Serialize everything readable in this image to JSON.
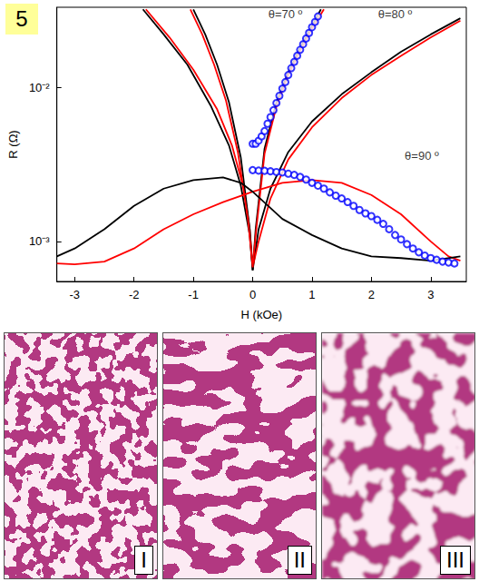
{
  "chart_data": {
    "type": "line",
    "panel": "5",
    "x_label": "H (kOe)",
    "y_label": "R (Ω)",
    "log": "y",
    "grid": false,
    "xlim": [
      -3.3,
      3.6
    ],
    "xticks": [
      -3,
      -2,
      -1,
      0,
      1,
      2,
      3
    ],
    "ylim": [
      0.00055,
      0.033
    ],
    "yticks": [
      {
        "value": 0.001,
        "label": "10⁻³"
      },
      {
        "value": 0.01,
        "label": "10⁻²"
      }
    ],
    "series": [
      {
        "color": "#000000",
        "type": "line",
        "line_style": "solid",
        "marker": "none",
        "x": [
          -1.85,
          -1.5,
          -1.1,
          -0.7,
          -0.4,
          -0.2,
          -0.05,
          0,
          0.1,
          0.3,
          0.6,
          1.0,
          1.5,
          2.0,
          2.5,
          3.0,
          3.5
        ],
        "values": [
          0.032,
          0.022,
          0.014,
          0.0075,
          0.0042,
          0.0023,
          0.0011,
          0.00065,
          0.0012,
          0.0022,
          0.0038,
          0.006,
          0.009,
          0.0125,
          0.017,
          0.022,
          0.028
        ]
      },
      {
        "color": "#ff0000",
        "type": "line",
        "line_style": "solid",
        "marker": "none",
        "x": [
          -1.8,
          -1.4,
          -1.0,
          -0.6,
          -0.35,
          -0.15,
          -0.05,
          0,
          0.1,
          0.3,
          0.6,
          1.0,
          1.5,
          2.0,
          2.5,
          3.0,
          3.5
        ],
        "values": [
          0.032,
          0.021,
          0.013,
          0.0072,
          0.0042,
          0.0022,
          0.0012,
          0.00068,
          0.001,
          0.0019,
          0.0034,
          0.0055,
          0.0085,
          0.012,
          0.016,
          0.021,
          0.027
        ]
      },
      {
        "color": "#000000",
        "type": "line",
        "line_style": "solid",
        "marker": "none",
        "x": [
          -1.0,
          -0.8,
          -0.6,
          -0.4,
          -0.2,
          -0.05,
          0,
          0.05,
          0.2,
          0.4,
          0.6,
          0.8,
          1.0,
          1.15
        ],
        "values": [
          0.032,
          0.022,
          0.014,
          0.008,
          0.0035,
          0.0012,
          0.00065,
          0.0012,
          0.004,
          0.008,
          0.0125,
          0.018,
          0.025,
          0.032
        ]
      },
      {
        "color": "#ff0000",
        "type": "line",
        "line_style": "solid",
        "marker": "none",
        "x": [
          -1.05,
          -0.85,
          -0.65,
          -0.45,
          -0.25,
          -0.08,
          0,
          0.05,
          0.2,
          0.4,
          0.6,
          0.8,
          1.0,
          1.2
        ],
        "values": [
          0.032,
          0.022,
          0.014,
          0.0082,
          0.0038,
          0.0014,
          0.00068,
          0.0011,
          0.0037,
          0.0075,
          0.012,
          0.0172,
          0.024,
          0.032
        ]
      },
      {
        "color": "#0000ff",
        "type": "scatter",
        "marker": "open_circle",
        "x": [
          0,
          0.05,
          0.1,
          0.15,
          0.2,
          0.25,
          0.3,
          0.35,
          0.4,
          0.45,
          0.5,
          0.55,
          0.6,
          0.65,
          0.7,
          0.75,
          0.8,
          0.85,
          0.9,
          0.95,
          1.0,
          1.05,
          1.1
        ],
        "values": [
          0.0043,
          0.0043,
          0.0045,
          0.0048,
          0.0052,
          0.0058,
          0.0064,
          0.0071,
          0.0079,
          0.0088,
          0.0098,
          0.0108,
          0.012,
          0.0133,
          0.0146,
          0.016,
          0.0175,
          0.019,
          0.0207,
          0.0225,
          0.0245,
          0.0265,
          0.0288
        ]
      },
      {
        "color": "#0000ff",
        "type": "scatter",
        "marker": "open_circle",
        "x": [
          0,
          0.1,
          0.2,
          0.3,
          0.4,
          0.5,
          0.6,
          0.7,
          0.8,
          0.9,
          1.0,
          1.1,
          1.2,
          1.3,
          1.4,
          1.5,
          1.6,
          1.7,
          1.8,
          1.9,
          2.0,
          2.1,
          2.2,
          2.3,
          2.4,
          2.5,
          2.6,
          2.7,
          2.8,
          2.9,
          3.0,
          3.1,
          3.2,
          3.3,
          3.4
        ],
        "values": [
          0.0029,
          0.00288,
          0.00287,
          0.00285,
          0.00282,
          0.0028,
          0.00275,
          0.0027,
          0.00262,
          0.00252,
          0.0024,
          0.0023,
          0.0022,
          0.00208,
          0.00198,
          0.0019,
          0.0018,
          0.0017,
          0.0016,
          0.00152,
          0.00146,
          0.00138,
          0.0013,
          0.0012,
          0.0011,
          0.00103,
          0.00096,
          0.0009,
          0.00085,
          0.00081,
          0.00078,
          0.00076,
          0.00074,
          0.00073,
          0.00072
        ]
      },
      {
        "color": "#ff0000",
        "type": "line",
        "line_style": "solid",
        "marker": "none",
        "x": [
          -3.3,
          -3.0,
          -2.5,
          -2.0,
          -1.5,
          -1.0,
          -0.5,
          0,
          0.5,
          1.0,
          1.5,
          2.0,
          2.5,
          3.0,
          3.3,
          3.5
        ],
        "values": [
          0.00072,
          0.00071,
          0.00074,
          0.0009,
          0.0012,
          0.0015,
          0.0018,
          0.0021,
          0.0024,
          0.0025,
          0.0024,
          0.002,
          0.0015,
          0.001,
          0.0008,
          0.00075
        ]
      },
      {
        "color": "#000000",
        "type": "line",
        "line_style": "solid",
        "marker": "none",
        "x": [
          -3.3,
          -3.0,
          -2.5,
          -2.0,
          -1.5,
          -1.0,
          -0.5,
          -0.2,
          0,
          0.5,
          1.0,
          1.5,
          2.0,
          2.5,
          3.0,
          3.5
        ],
        "values": [
          0.0008,
          0.0009,
          0.0012,
          0.0017,
          0.0022,
          0.0025,
          0.0026,
          0.0024,
          0.0021,
          0.0014,
          0.0011,
          0.0009,
          0.0008,
          0.00078,
          0.00075,
          0.0008
        ]
      }
    ],
    "annotations": [
      {
        "text": "θ=70 º",
        "x": 0.55,
        "y": 0.03
      },
      {
        "text": "θ=80 º",
        "x": 2.4,
        "y": 0.03
      },
      {
        "text": "θ=90 º",
        "x": 2.85,
        "y": 0.0036
      }
    ]
  },
  "images": [
    {
      "label": "I"
    },
    {
      "label": "II"
    },
    {
      "label": "III"
    }
  ]
}
